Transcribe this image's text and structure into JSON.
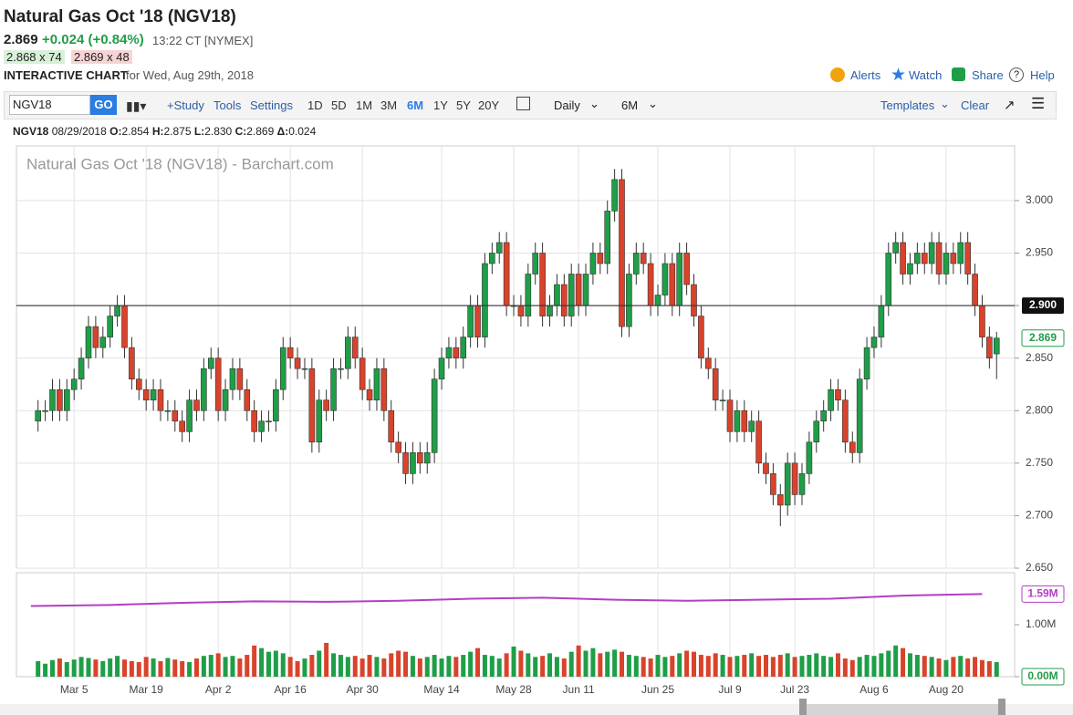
{
  "header": {
    "title": "Natural Gas Oct '18 (NGV18)",
    "last": "2.869",
    "change": "+0.024 (+0.84%)",
    "time": "13:22 CT [NYMEX]",
    "bid": "2.868 x 74",
    "ask": "2.869 x 48",
    "chart_label": "INTERACTIVE CHART",
    "chart_date": "for Wed, Aug 29th, 2018",
    "links": [
      "Alerts",
      "Watch",
      "Share",
      "Help"
    ]
  },
  "toolbar": {
    "symbol": "NGV18",
    "go": "GO",
    "study": "+Study",
    "tools": "Tools",
    "settings": "Settings",
    "periods": [
      "1D",
      "5D",
      "1M",
      "3M",
      "6M",
      "1Y",
      "5Y",
      "20Y"
    ],
    "active_period_index": 4,
    "interval": "Daily",
    "range": "6M",
    "templates": "Templates",
    "clear": "Clear"
  },
  "info": {
    "symbol": "NGV18",
    "date": "08/29/2018",
    "o_label": "O:",
    "o": "2.854",
    "h_label": "H:",
    "h": "2.875",
    "l_label": "L:",
    "l": "2.830",
    "c_label": "C:",
    "c": "2.869",
    "d_label": "Δ:",
    "d": "0.024"
  },
  "chart_data": {
    "type": "candlestick",
    "watermark": "Natural Gas Oct '18 (NGV18) - Barchart.com",
    "up_color": "#1f9e48",
    "down_color": "#d9432b",
    "volume_line_color": "#b43ec4",
    "ylim": [
      2.65,
      3.052
    ],
    "yticks": [
      {
        "value": 2.65,
        "label": "2.650"
      },
      {
        "value": 2.7,
        "label": "2.700"
      },
      {
        "value": 2.75,
        "label": "2.750"
      },
      {
        "value": 2.8,
        "label": "2.800"
      },
      {
        "value": 2.85,
        "label": "2.850"
      },
      {
        "value": 2.9,
        "label": "2.900"
      },
      {
        "value": 2.95,
        "label": "2.950"
      },
      {
        "value": 3,
        "label": "3.000"
      }
    ],
    "reference_line": {
      "value": 2.9,
      "label": "2.900"
    },
    "last_price": {
      "value": 2.869,
      "label": "2.869"
    },
    "xlim": [
      -3,
      135.5
    ],
    "xticks": [
      {
        "value": 5,
        "label": "Mar 5"
      },
      {
        "value": 15,
        "label": "Mar 19"
      },
      {
        "value": 25,
        "label": "Apr 2"
      },
      {
        "value": 35,
        "label": "Apr 16"
      },
      {
        "value": 45,
        "label": "Apr 30"
      },
      {
        "value": 56,
        "label": "May 14"
      },
      {
        "value": 66,
        "label": "May 28"
      },
      {
        "value": 75,
        "label": "Jun 11"
      },
      {
        "value": 86,
        "label": "Jun 25"
      },
      {
        "value": 96,
        "label": "Jul 9"
      },
      {
        "value": 105,
        "label": "Jul 23"
      },
      {
        "value": 116,
        "label": "Aug 6"
      },
      {
        "value": 126,
        "label": "Aug 20"
      }
    ],
    "ohlc": [
      [
        2.79,
        2.81,
        2.78,
        2.8
      ],
      [
        2.8,
        2.81,
        2.79,
        2.8
      ],
      [
        2.8,
        2.83,
        2.79,
        2.82
      ],
      [
        2.82,
        2.83,
        2.79,
        2.8
      ],
      [
        2.8,
        2.83,
        2.79,
        2.82
      ],
      [
        2.82,
        2.84,
        2.81,
        2.83
      ],
      [
        2.83,
        2.86,
        2.82,
        2.85
      ],
      [
        2.85,
        2.89,
        2.84,
        2.88
      ],
      [
        2.88,
        2.89,
        2.85,
        2.86
      ],
      [
        2.86,
        2.88,
        2.85,
        2.87
      ],
      [
        2.87,
        2.9,
        2.86,
        2.89
      ],
      [
        2.89,
        2.91,
        2.88,
        2.9
      ],
      [
        2.9,
        2.91,
        2.85,
        2.86
      ],
      [
        2.86,
        2.87,
        2.82,
        2.83
      ],
      [
        2.83,
        2.84,
        2.81,
        2.82
      ],
      [
        2.82,
        2.83,
        2.8,
        2.81
      ],
      [
        2.81,
        2.83,
        2.8,
        2.82
      ],
      [
        2.82,
        2.83,
        2.79,
        2.8
      ],
      [
        2.8,
        2.81,
        2.79,
        2.8
      ],
      [
        2.8,
        2.81,
        2.78,
        2.79
      ],
      [
        2.79,
        2.8,
        2.77,
        2.78
      ],
      [
        2.78,
        2.82,
        2.77,
        2.81
      ],
      [
        2.81,
        2.82,
        2.79,
        2.8
      ],
      [
        2.8,
        2.85,
        2.79,
        2.84
      ],
      [
        2.84,
        2.86,
        2.83,
        2.85
      ],
      [
        2.85,
        2.86,
        2.79,
        2.8
      ],
      [
        2.8,
        2.83,
        2.79,
        2.82
      ],
      [
        2.82,
        2.85,
        2.81,
        2.84
      ],
      [
        2.84,
        2.85,
        2.81,
        2.82
      ],
      [
        2.82,
        2.83,
        2.79,
        2.8
      ],
      [
        2.8,
        2.81,
        2.77,
        2.78
      ],
      [
        2.78,
        2.8,
        2.77,
        2.79
      ],
      [
        2.79,
        2.8,
        2.78,
        2.79
      ],
      [
        2.79,
        2.83,
        2.78,
        2.82
      ],
      [
        2.82,
        2.87,
        2.81,
        2.86
      ],
      [
        2.86,
        2.87,
        2.84,
        2.85
      ],
      [
        2.85,
        2.86,
        2.83,
        2.84
      ],
      [
        2.84,
        2.85,
        2.83,
        2.84
      ],
      [
        2.84,
        2.85,
        2.76,
        2.77
      ],
      [
        2.77,
        2.82,
        2.76,
        2.81
      ],
      [
        2.81,
        2.82,
        2.79,
        2.8
      ],
      [
        2.8,
        2.85,
        2.79,
        2.84
      ],
      [
        2.84,
        2.85,
        2.83,
        2.84
      ],
      [
        2.84,
        2.88,
        2.83,
        2.87
      ],
      [
        2.87,
        2.88,
        2.84,
        2.85
      ],
      [
        2.85,
        2.86,
        2.81,
        2.82
      ],
      [
        2.82,
        2.83,
        2.8,
        2.81
      ],
      [
        2.81,
        2.85,
        2.8,
        2.84
      ],
      [
        2.84,
        2.85,
        2.79,
        2.8
      ],
      [
        2.8,
        2.81,
        2.76,
        2.77
      ],
      [
        2.77,
        2.78,
        2.75,
        2.76
      ],
      [
        2.76,
        2.77,
        2.73,
        2.74
      ],
      [
        2.74,
        2.77,
        2.73,
        2.76
      ],
      [
        2.76,
        2.77,
        2.74,
        2.75
      ],
      [
        2.75,
        2.77,
        2.74,
        2.76
      ],
      [
        2.76,
        2.84,
        2.75,
        2.83
      ],
      [
        2.83,
        2.86,
        2.82,
        2.85
      ],
      [
        2.85,
        2.87,
        2.84,
        2.86
      ],
      [
        2.86,
        2.87,
        2.84,
        2.85
      ],
      [
        2.85,
        2.88,
        2.84,
        2.87
      ],
      [
        2.87,
        2.91,
        2.86,
        2.9
      ],
      [
        2.9,
        2.91,
        2.86,
        2.87
      ],
      [
        2.87,
        2.95,
        2.86,
        2.94
      ],
      [
        2.94,
        2.96,
        2.93,
        2.95
      ],
      [
        2.95,
        2.97,
        2.94,
        2.96
      ],
      [
        2.96,
        2.97,
        2.89,
        2.9
      ],
      [
        2.9,
        2.91,
        2.89,
        2.9
      ],
      [
        2.9,
        2.91,
        2.88,
        2.89
      ],
      [
        2.89,
        2.94,
        2.88,
        2.93
      ],
      [
        2.93,
        2.96,
        2.92,
        2.95
      ],
      [
        2.95,
        2.96,
        2.88,
        2.89
      ],
      [
        2.89,
        2.91,
        2.88,
        2.9
      ],
      [
        2.9,
        2.93,
        2.89,
        2.92
      ],
      [
        2.92,
        2.93,
        2.88,
        2.89
      ],
      [
        2.89,
        2.94,
        2.88,
        2.93
      ],
      [
        2.93,
        2.94,
        2.89,
        2.9
      ],
      [
        2.9,
        2.94,
        2.89,
        2.93
      ],
      [
        2.93,
        2.96,
        2.92,
        2.95
      ],
      [
        2.95,
        2.96,
        2.93,
        2.94
      ],
      [
        2.94,
        3.0,
        2.93,
        2.99
      ],
      [
        2.99,
        3.03,
        2.98,
        3.02
      ],
      [
        3.02,
        3.03,
        2.87,
        2.88
      ],
      [
        2.88,
        2.94,
        2.87,
        2.93
      ],
      [
        2.93,
        2.96,
        2.92,
        2.95
      ],
      [
        2.95,
        2.96,
        2.93,
        2.94
      ],
      [
        2.94,
        2.95,
        2.89,
        2.9
      ],
      [
        2.9,
        2.92,
        2.89,
        2.91
      ],
      [
        2.91,
        2.95,
        2.9,
        2.94
      ],
      [
        2.94,
        2.95,
        2.89,
        2.9
      ],
      [
        2.9,
        2.96,
        2.89,
        2.95
      ],
      [
        2.95,
        2.96,
        2.91,
        2.92
      ],
      [
        2.92,
        2.93,
        2.88,
        2.89
      ],
      [
        2.89,
        2.9,
        2.84,
        2.85
      ],
      [
        2.85,
        2.86,
        2.83,
        2.84
      ],
      [
        2.84,
        2.85,
        2.8,
        2.81
      ],
      [
        2.81,
        2.82,
        2.8,
        2.81
      ],
      [
        2.81,
        2.82,
        2.77,
        2.78
      ],
      [
        2.78,
        2.81,
        2.77,
        2.8
      ],
      [
        2.8,
        2.81,
        2.77,
        2.78
      ],
      [
        2.78,
        2.8,
        2.77,
        2.79
      ],
      [
        2.79,
        2.8,
        2.74,
        2.75
      ],
      [
        2.75,
        2.76,
        2.73,
        2.74
      ],
      [
        2.74,
        2.75,
        2.71,
        2.72
      ],
      [
        2.72,
        2.73,
        2.69,
        2.71
      ],
      [
        2.71,
        2.76,
        2.7,
        2.75
      ],
      [
        2.75,
        2.76,
        2.71,
        2.72
      ],
      [
        2.72,
        2.75,
        2.71,
        2.74
      ],
      [
        2.74,
        2.78,
        2.73,
        2.77
      ],
      [
        2.77,
        2.8,
        2.76,
        2.79
      ],
      [
        2.79,
        2.81,
        2.78,
        2.8
      ],
      [
        2.8,
        2.83,
        2.79,
        2.82
      ],
      [
        2.82,
        2.83,
        2.8,
        2.81
      ],
      [
        2.81,
        2.82,
        2.76,
        2.77
      ],
      [
        2.77,
        2.78,
        2.75,
        2.76
      ],
      [
        2.76,
        2.84,
        2.75,
        2.83
      ],
      [
        2.83,
        2.87,
        2.82,
        2.86
      ],
      [
        2.86,
        2.88,
        2.85,
        2.87
      ],
      [
        2.87,
        2.91,
        2.86,
        2.9
      ],
      [
        2.9,
        2.96,
        2.89,
        2.95
      ],
      [
        2.95,
        2.97,
        2.94,
        2.96
      ],
      [
        2.96,
        2.97,
        2.92,
        2.93
      ],
      [
        2.93,
        2.95,
        2.92,
        2.94
      ],
      [
        2.94,
        2.96,
        2.93,
        2.95
      ],
      [
        2.95,
        2.96,
        2.93,
        2.94
      ],
      [
        2.94,
        2.97,
        2.93,
        2.96
      ],
      [
        2.96,
        2.97,
        2.92,
        2.93
      ],
      [
        2.93,
        2.96,
        2.92,
        2.95
      ],
      [
        2.95,
        2.96,
        2.93,
        2.94
      ],
      [
        2.94,
        2.97,
        2.93,
        2.96
      ],
      [
        2.96,
        2.97,
        2.92,
        2.93
      ],
      [
        2.93,
        2.94,
        2.89,
        2.9
      ],
      [
        2.9,
        2.91,
        2.86,
        2.87
      ],
      [
        2.87,
        2.88,
        2.84,
        2.85
      ],
      [
        2.854,
        2.875,
        2.83,
        2.869
      ]
    ],
    "vylim": [
      0,
      2
    ],
    "vticks": [
      {
        "value": 0,
        "label": "0.00M"
      },
      {
        "value": 1,
        "label": "1.00M"
      }
    ],
    "volume": [
      0.3,
      0.25,
      0.32,
      0.35,
      0.28,
      0.33,
      0.38,
      0.36,
      0.33,
      0.3,
      0.35,
      0.4,
      0.33,
      0.3,
      0.28,
      0.38,
      0.35,
      0.3,
      0.36,
      0.33,
      0.3,
      0.28,
      0.35,
      0.4,
      0.42,
      0.45,
      0.38,
      0.4,
      0.35,
      0.42,
      0.6,
      0.55,
      0.48,
      0.5,
      0.45,
      0.38,
      0.3,
      0.35,
      0.42,
      0.5,
      0.65,
      0.45,
      0.42,
      0.38,
      0.4,
      0.35,
      0.42,
      0.38,
      0.35,
      0.45,
      0.5,
      0.48,
      0.4,
      0.35,
      0.38,
      0.42,
      0.35,
      0.4,
      0.38,
      0.42,
      0.48,
      0.55,
      0.42,
      0.4,
      0.35,
      0.45,
      0.58,
      0.5,
      0.45,
      0.38,
      0.4,
      0.45,
      0.38,
      0.35,
      0.48,
      0.6,
      0.5,
      0.55,
      0.45,
      0.48,
      0.52,
      0.48,
      0.42,
      0.4,
      0.38,
      0.35,
      0.42,
      0.38,
      0.4,
      0.45,
      0.5,
      0.48,
      0.42,
      0.4,
      0.45,
      0.42,
      0.38,
      0.4,
      0.42,
      0.45,
      0.4,
      0.42,
      0.38,
      0.42,
      0.45,
      0.38,
      0.4,
      0.42,
      0.45,
      0.4,
      0.38,
      0.45,
      0.35,
      0.32,
      0.38,
      0.42,
      0.4,
      0.45,
      0.5,
      0.6,
      0.55,
      0.45,
      0.42,
      0.4,
      0.38,
      0.35,
      0.32,
      0.38,
      0.4,
      0.35,
      0.38,
      0.32,
      0.3,
      0.28
    ],
    "volume_avg": {
      "x": [
        -1,
        10,
        20,
        30,
        40,
        50,
        60,
        70,
        80,
        90,
        100,
        110,
        120,
        131
      ],
      "values": [
        1.36,
        1.38,
        1.42,
        1.45,
        1.44,
        1.46,
        1.5,
        1.52,
        1.48,
        1.46,
        1.48,
        1.5,
        1.56,
        1.59
      ]
    },
    "volume_avg_last": {
      "value": 1.59,
      "label": "1.59M"
    }
  }
}
